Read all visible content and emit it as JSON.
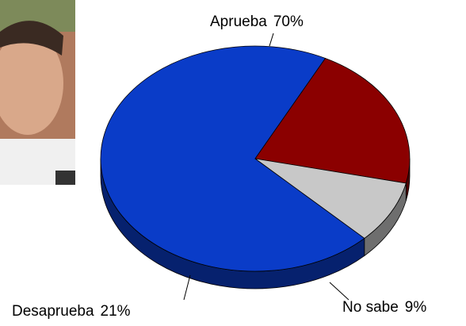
{
  "chart_data": {
    "type": "pie",
    "categories": [
      "Aprueba",
      "Desaprueba",
      "No sabe"
    ],
    "values": [
      70,
      21,
      9
    ],
    "value_labels": [
      "70%",
      "21%",
      "9%"
    ],
    "colors": [
      "#0a3cc8",
      "#8b0000",
      "#c8c8c8"
    ]
  }
}
